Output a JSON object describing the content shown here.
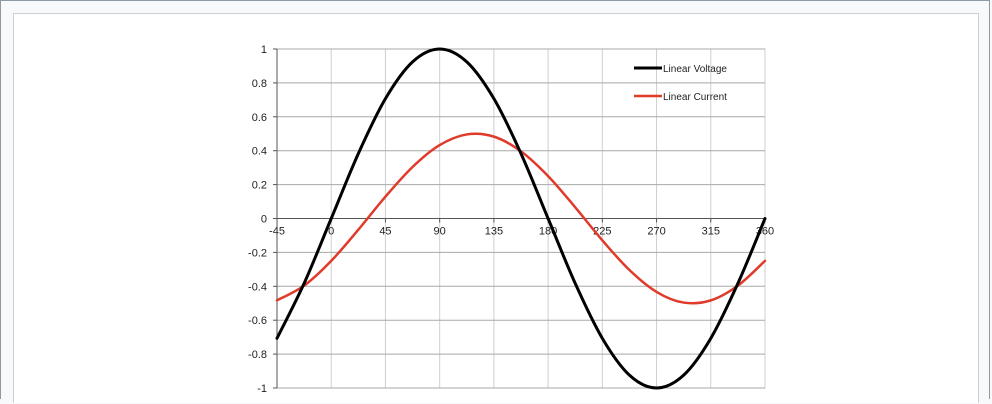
{
  "chart_data": {
    "type": "line",
    "title": "",
    "xlabel": "",
    "ylabel": "",
    "xlim": [
      -45,
      360
    ],
    "ylim": [
      -1,
      1
    ],
    "x_ticks": [
      -45,
      0,
      45,
      90,
      135,
      180,
      225,
      270,
      315,
      360
    ],
    "y_ticks": [
      1,
      0.8,
      0.6,
      0.4,
      0.2,
      0,
      -0.2,
      -0.4,
      -0.6,
      -0.8,
      -1
    ],
    "x_tick_labels": [
      "-45",
      "0",
      "45",
      "90",
      "135",
      "180",
      "225",
      "270",
      "315",
      "360"
    ],
    "y_tick_labels": [
      "1",
      "0.8",
      "0.6",
      "0.4",
      "0.2",
      "0",
      "-0.2",
      "-0.4",
      "-0.6",
      "-0.8",
      "-1"
    ],
    "grid": true,
    "legend_position": "top-right",
    "x": [
      -45,
      -22.5,
      0,
      22.5,
      45,
      67.5,
      90,
      112.5,
      135,
      157.5,
      180,
      202.5,
      225,
      247.5,
      270,
      292.5,
      315,
      337.5,
      360
    ],
    "series": [
      {
        "name": "Linear Voltage",
        "color": "#000000",
        "values": [
          -0.707,
          -0.383,
          0,
          0.383,
          0.707,
          0.924,
          1,
          0.924,
          0.707,
          0.383,
          0,
          -0.383,
          -0.707,
          -0.924,
          -1,
          -0.924,
          -0.707,
          -0.383,
          0
        ]
      },
      {
        "name": "Linear Current",
        "color": "#e03a2a",
        "values": [
          -0.483,
          -0.396,
          -0.25,
          -0.066,
          0.129,
          0.304,
          0.433,
          0.496,
          0.483,
          0.396,
          0.25,
          0.066,
          -0.129,
          -0.304,
          -0.433,
          -0.496,
          -0.483,
          -0.396,
          -0.25
        ]
      }
    ]
  }
}
